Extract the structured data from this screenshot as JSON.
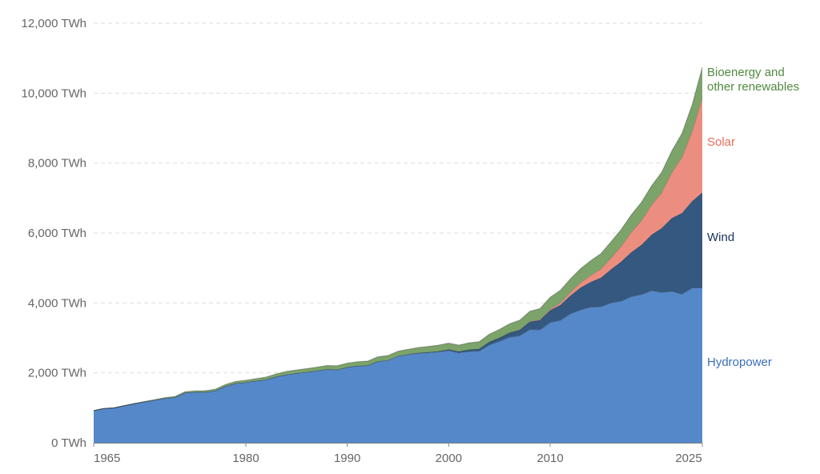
{
  "chart_data": {
    "type": "area",
    "stacked": true,
    "grid": "horizontal dashed",
    "legend": "inline labels at right end of each series",
    "xlim": [
      1965,
      2025
    ],
    "ylim": [
      0,
      12000
    ],
    "y_ticks": [
      0,
      2000,
      4000,
      6000,
      8000,
      10000,
      12000
    ],
    "y_tick_labels": [
      "0 TWh",
      "2,000 TWh",
      "4,000 TWh",
      "6,000 TWh",
      "8,000 TWh",
      "10,000 TWh",
      "12,000 TWh"
    ],
    "x_ticks": [
      1965,
      1980,
      1990,
      2000,
      2010,
      2025
    ],
    "x_tick_labels": [
      "1965",
      "1980",
      "1990",
      "2000",
      "2010",
      "2025"
    ],
    "x": [
      1965,
      1966,
      1967,
      1968,
      1969,
      1970,
      1971,
      1972,
      1973,
      1974,
      1975,
      1976,
      1977,
      1978,
      1979,
      1980,
      1981,
      1982,
      1983,
      1984,
      1985,
      1986,
      1987,
      1988,
      1989,
      1990,
      1991,
      1992,
      1993,
      1994,
      1995,
      1996,
      1997,
      1998,
      1999,
      2000,
      2001,
      2002,
      2003,
      2004,
      2005,
      2006,
      2007,
      2008,
      2009,
      2010,
      2011,
      2012,
      2013,
      2014,
      2015,
      2016,
      2017,
      2018,
      2019,
      2020,
      2021,
      2022,
      2023,
      2024,
      2025
    ],
    "series": [
      {
        "name": "Hydropower",
        "color": "#5588c8",
        "label_color": "#3a6fbd",
        "values": [
          920,
          980,
          1000,
          1060,
          1120,
          1170,
          1220,
          1270,
          1300,
          1430,
          1450,
          1450,
          1490,
          1620,
          1700,
          1730,
          1770,
          1810,
          1890,
          1950,
          1990,
          2020,
          2060,
          2100,
          2090,
          2160,
          2200,
          2210,
          2330,
          2360,
          2480,
          2530,
          2560,
          2580,
          2600,
          2640,
          2570,
          2610,
          2620,
          2800,
          2900,
          3020,
          3060,
          3240,
          3230,
          3440,
          3500,
          3690,
          3800,
          3880,
          3890,
          4000,
          4050,
          4180,
          4240,
          4350,
          4300,
          4330,
          4250,
          4430,
          4430
        ]
      },
      {
        "name": "Wind",
        "color": "#34587f",
        "label_color": "#15315a",
        "values": [
          0,
          0,
          0,
          0,
          0,
          0,
          0,
          0,
          0,
          0,
          0,
          0,
          0,
          0,
          0,
          0,
          0,
          0,
          0,
          0,
          0,
          0,
          0,
          0,
          0,
          0,
          0,
          0,
          0,
          0,
          0,
          0,
          10,
          12,
          20,
          30,
          40,
          55,
          65,
          85,
          105,
          130,
          170,
          220,
          280,
          350,
          440,
          520,
          640,
          720,
          830,
          960,
          1130,
          1270,
          1420,
          1600,
          1840,
          2100,
          2320,
          2480,
          2730
        ]
      },
      {
        "name": "Solar",
        "color": "#ec8e7f",
        "label_color": "#e56e5a",
        "values": [
          0,
          0,
          0,
          0,
          0,
          0,
          0,
          0,
          0,
          0,
          0,
          0,
          0,
          0,
          0,
          0,
          0,
          0,
          0,
          0,
          0,
          0,
          0,
          0,
          0,
          0,
          0,
          0,
          0,
          0,
          0,
          0,
          0,
          0,
          0,
          0,
          0,
          0,
          0,
          0,
          2,
          4,
          8,
          12,
          20,
          32,
          60,
          100,
          140,
          190,
          250,
          330,
          440,
          570,
          700,
          850,
          1020,
          1300,
          1600,
          2000,
          2700
        ]
      },
      {
        "name": "Bioenergy and other renewables",
        "label_lines": [
          "Bioenergy and",
          "other renewables"
        ],
        "color": "#7ba36a",
        "label_color": "#4f8a3e",
        "values": [
          0,
          0,
          0,
          0,
          0,
          10,
          15,
          20,
          25,
          30,
          35,
          40,
          45,
          50,
          55,
          60,
          65,
          70,
          80,
          90,
          95,
          100,
          105,
          110,
          115,
          120,
          120,
          125,
          130,
          135,
          140,
          145,
          155,
          165,
          175,
          180,
          185,
          195,
          205,
          220,
          235,
          250,
          270,
          290,
          310,
          340,
          360,
          380,
          400,
          420,
          440,
          460,
          480,
          500,
          520,
          550,
          580,
          620,
          680,
          760,
          880
        ]
      }
    ]
  }
}
